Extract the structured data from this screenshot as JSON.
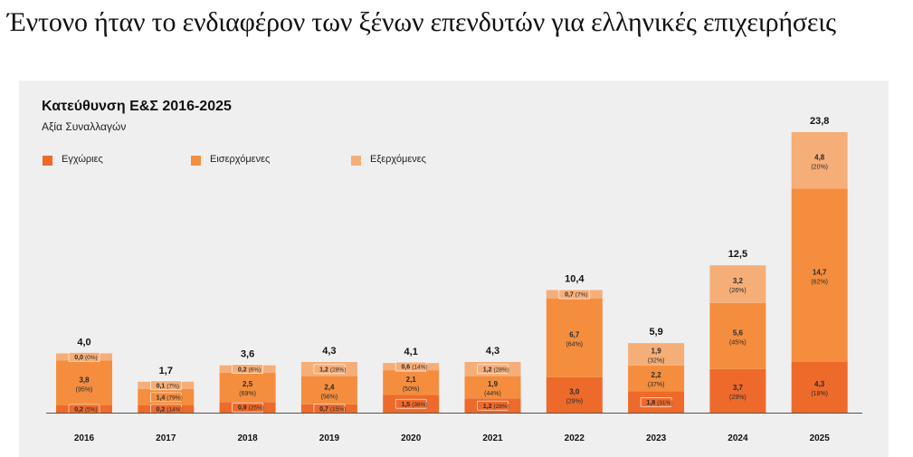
{
  "headline": "Έντονο ήταν το ενδιαφέρον των ξένων επενδυτών για ελληνικές επιχειρήσεις",
  "colors": {
    "domestic": "#ee6a2b",
    "inbound": "#f48e3e",
    "outbound": "#f6ae78",
    "panel": "#efefef",
    "axis": "#555555"
  },
  "chart_data": {
    "type": "bar",
    "stacked": true,
    "title": "Κατεύθυνση Ε&Σ 2016-2025",
    "subtitle": "Αξία Συναλλαγών",
    "legend_position": "top-left",
    "categories": [
      "2016",
      "2017",
      "2018",
      "2019",
      "2020",
      "2021",
      "2022",
      "2023",
      "2024",
      "2025"
    ],
    "series": [
      {
        "name": "Εγχώριες",
        "values": [
          0.2,
          0.2,
          0.9,
          0.7,
          1.5,
          1.2,
          3.0,
          1.8,
          3.7,
          4.3
        ],
        "value_labels": [
          "0,2",
          "0,2",
          "0,9",
          "0,7",
          "1,5",
          "1,2",
          "3,0",
          "1,8",
          "3,7",
          "4,3"
        ],
        "share_labels": [
          "(5%)",
          "(14%)",
          "(25%)",
          "(15%)",
          "(36%)",
          "(28%)",
          "(29%)",
          "(31%)",
          "(29%)",
          "(18%)"
        ]
      },
      {
        "name": "Εισερχόμενες",
        "values": [
          3.8,
          1.4,
          2.5,
          2.4,
          2.1,
          1.9,
          6.7,
          2.2,
          5.6,
          14.7
        ],
        "value_labels": [
          "3,8",
          "1,4",
          "2,5",
          "2,4",
          "2,1",
          "1,9",
          "6,7",
          "2,2",
          "5,6",
          "14,7"
        ],
        "share_labels": [
          "(95%)",
          "(79%)",
          "(69%)",
          "(56%)",
          "(50%)",
          "(44%)",
          "(64%)",
          "(37%)",
          "(45%)",
          "(62%)"
        ]
      },
      {
        "name": "Εξερχόμενες",
        "values": [
          0.0,
          0.1,
          0.2,
          1.2,
          0.6,
          1.2,
          0.7,
          1.9,
          3.2,
          4.8
        ],
        "value_labels": [
          "0,0",
          "0,1",
          "0,2",
          "1,2",
          "0,6",
          "1,2",
          "0,7",
          "1,9",
          "3,2",
          "4,8"
        ],
        "share_labels": [
          "(0%)",
          "(7%)",
          "(6%)",
          "(28%)",
          "(14%)",
          "(28%)",
          "(7%)",
          "(32%)",
          "(26%)",
          "(20%)"
        ]
      }
    ],
    "totals": [
      4.0,
      1.7,
      3.6,
      4.3,
      4.1,
      4.3,
      10.4,
      5.9,
      12.5,
      23.8
    ],
    "total_labels": [
      "4,0",
      "1,7",
      "3,6",
      "4,3",
      "4,1",
      "4,3",
      "10,4",
      "5,9",
      "12,5",
      "23,8"
    ],
    "ylim": [
      0,
      23.8
    ]
  }
}
